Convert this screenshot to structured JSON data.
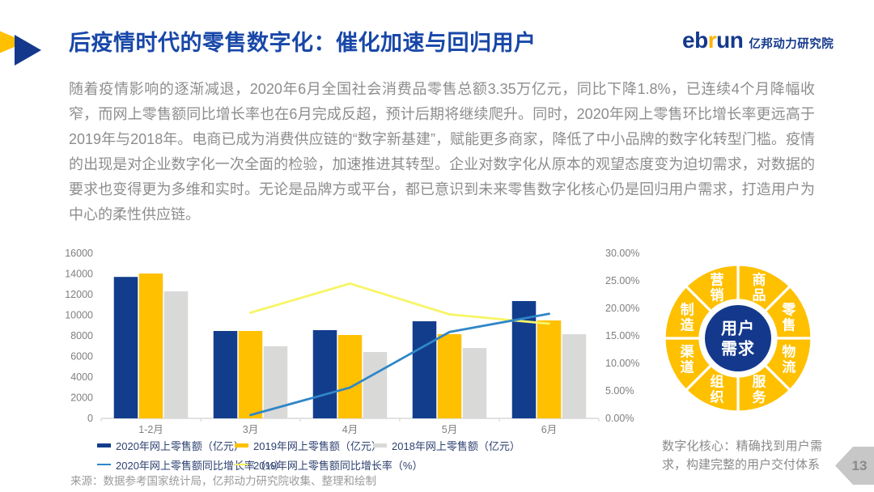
{
  "slide": {
    "title": "后疫情时代的零售数字化：催化加速与回归用户",
    "logo": {
      "part1": "eb",
      "accent": "r",
      "part2": "un",
      "org": "亿邦动力研究院"
    },
    "body_text": "随着疫情影响的逐渐减退，2020年6月全国社会消费品零售总额3.35万亿元，同比下降1.8%，已连续4个月降幅收窄，而网上零售额同比增长率也在6月完成反超，预计后期将继续爬升。同时，2020年网上零售环比增长率更远高于2019年与2018年。电商已成为消费供应链的“数字新基建”，赋能更多商家，降低了中小品牌的数字化转型门槛。疫情的出现是对企业数字化一次全面的检验，加速推进其转型。企业对数字化从原本的观望态度变为迫切需求，对数据的要求也变得更为多维和实时。无论是品牌方或平台，都已意识到未来零售数字化核心仍是回归用户需求，打造用户为中心的柔性供应链。",
    "source": "来源：数据参考国家统计局，亿邦动力研究院收集、整理和绘制",
    "page_number": "13"
  },
  "chart_data": {
    "type": "bar+line",
    "categories": [
      "1-2月",
      "3月",
      "4月",
      "5月",
      "6月"
    ],
    "bar_series": [
      {
        "name": "2020年网上零售额（亿元）",
        "color": "#123D8D",
        "values": [
          13710,
          8470,
          8550,
          9410,
          11370
        ]
      },
      {
        "name": "2019年网上零售额（亿元）",
        "color": "#FFC000",
        "values": [
          14040,
          8470,
          8080,
          8160,
          9490
        ]
      },
      {
        "name": "2018年网上零售额（亿元）",
        "color": "#D9D9D8",
        "values": [
          12310,
          6990,
          6430,
          6820,
          8160
        ]
      }
    ],
    "line_series": [
      {
        "name": "2020年网上零售额同比增长率（%）",
        "color": "#2F86C8",
        "values": [
          null,
          0.6,
          5.6,
          15.7,
          19.0
        ]
      },
      {
        "name": "2019年网上零售额同比增长率（%）",
        "color": "#F7F566",
        "values": [
          null,
          19.2,
          24.5,
          18.9,
          17.2
        ]
      }
    ],
    "left_axis": {
      "min": 0,
      "max": 16000,
      "step": 2000
    },
    "right_axis": {
      "min": 0,
      "max": 30,
      "step": 5,
      "suffix": "%"
    },
    "grid": false,
    "legend_position": "bottom"
  },
  "donut": {
    "segments": [
      "商品",
      "零售",
      "物流",
      "服务",
      "组织",
      "渠道",
      "制造",
      "营销"
    ],
    "center_lines": [
      "用户",
      "需求"
    ],
    "ring_color": "#FFC000",
    "center_color": "#14398C",
    "caption": "数字化核心：精确找到用户需求，构建完整的用户交付体系"
  }
}
